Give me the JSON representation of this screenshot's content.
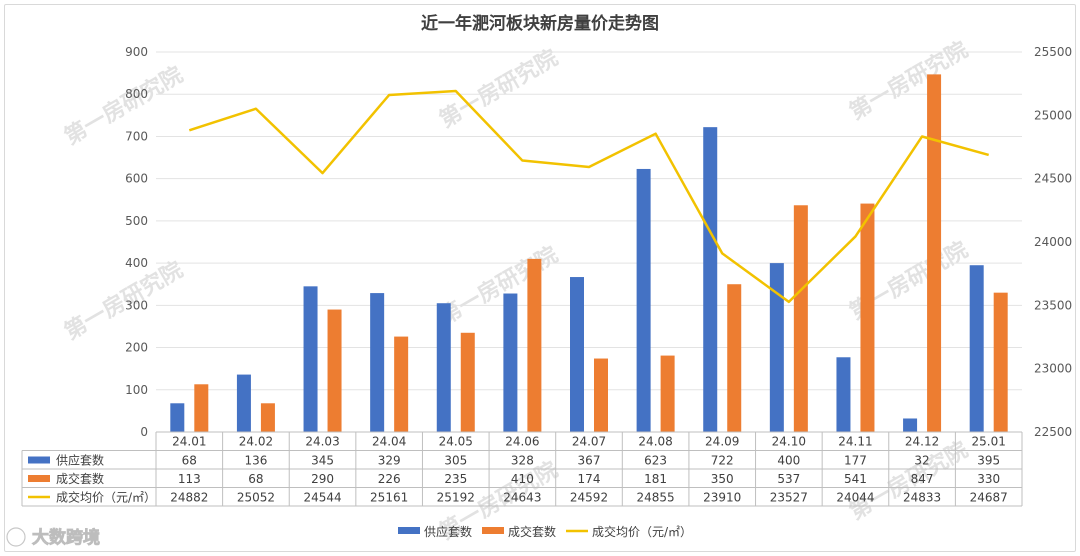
{
  "chart_data": {
    "type": "bar",
    "title": "近一年淝河板块新房量价走势图",
    "categories": [
      "24.01",
      "24.02",
      "24.03",
      "24.04",
      "24.05",
      "24.06",
      "24.07",
      "24.08",
      "24.09",
      "24.10",
      "24.11",
      "24.12",
      "25.01"
    ],
    "series": [
      {
        "name": "供应套数",
        "type": "bar",
        "axis": "left",
        "color": "#4472c4",
        "values": [
          68,
          136,
          345,
          329,
          305,
          328,
          367,
          623,
          722,
          400,
          177,
          32,
          395
        ]
      },
      {
        "name": "成交套数",
        "type": "bar",
        "axis": "left",
        "color": "#ed7d31",
        "values": [
          113,
          68,
          290,
          226,
          235,
          410,
          174,
          181,
          350,
          537,
          541,
          847,
          330
        ]
      },
      {
        "name": "成交均价（元/㎡）",
        "type": "line",
        "axis": "right",
        "color": "#f2c200",
        "values": [
          24882,
          25052,
          24544,
          25161,
          25192,
          24643,
          24592,
          24855,
          23910,
          23527,
          24044,
          24833,
          24687
        ]
      }
    ],
    "y_left": {
      "min": 0,
      "max": 900,
      "step": 100
    },
    "y_right": {
      "min": 22500,
      "max": 25500,
      "step": 500
    },
    "grid": true,
    "legend_position": "bottom",
    "data_table": true
  },
  "watermark": "第一房研究院",
  "brand_logo": "大数跨境"
}
